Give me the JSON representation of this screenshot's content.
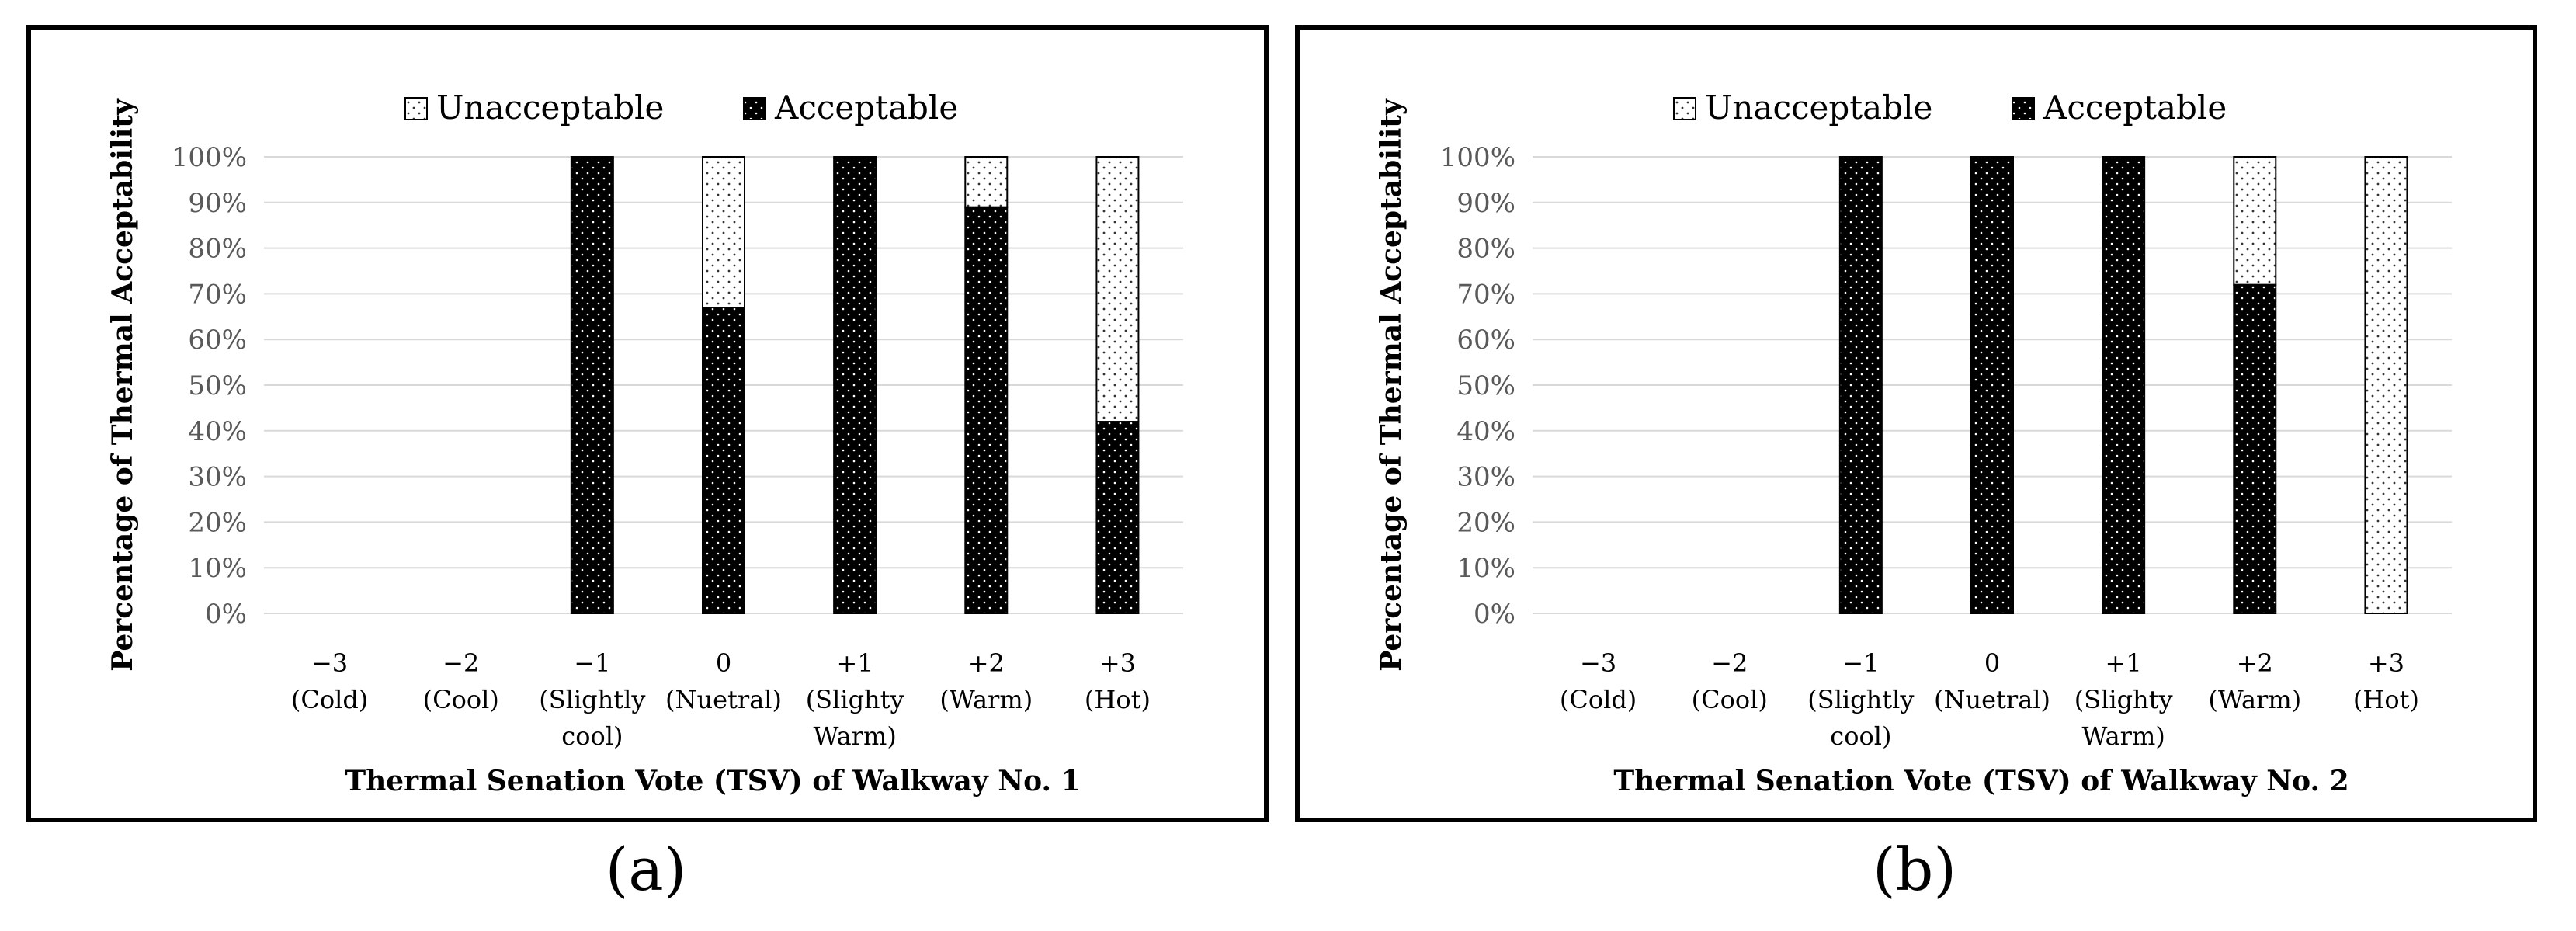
{
  "panels": [
    {
      "label": "(a)",
      "chart_data": {
        "type": "bar",
        "stacked": true,
        "categories": [
          [
            "−3",
            "(Cold)"
          ],
          [
            "−2",
            "(Cool)"
          ],
          [
            "−1",
            "(Slightly",
            "cool)"
          ],
          [
            "0",
            "(Nuetral)"
          ],
          [
            "+1",
            "(Slighty",
            "Warm)"
          ],
          [
            "+2",
            "(Warm)"
          ],
          [
            "+3",
            "(Hot)"
          ]
        ],
        "series": [
          {
            "name": "Acceptable",
            "values": [
              0,
              0,
              100,
              67,
              100,
              89,
              42
            ]
          },
          {
            "name": "Unacceptable",
            "values": [
              0,
              0,
              0,
              33,
              0,
              11,
              58
            ]
          }
        ],
        "ylabel": "Percentage of Thermal Acceptability",
        "xlabel": "Thermal Senation Vote (TSV) of Walkway No. 1",
        "yticks": [
          "0%",
          "10%",
          "20%",
          "30%",
          "40%",
          "50%",
          "60%",
          "70%",
          "80%",
          "90%",
          "100%"
        ],
        "ylim": [
          0,
          100
        ],
        "grid": true,
        "legend": [
          "Unacceptable",
          "Acceptable"
        ],
        "legend_position": "top"
      }
    },
    {
      "label": "(b)",
      "chart_data": {
        "type": "bar",
        "stacked": true,
        "categories": [
          [
            "−3",
            "(Cold)"
          ],
          [
            "−2",
            "(Cool)"
          ],
          [
            "−1",
            "(Slightly",
            "cool)"
          ],
          [
            "0",
            "(Nuetral)"
          ],
          [
            "+1",
            "(Slighty",
            "Warm)"
          ],
          [
            "+2",
            "(Warm)"
          ],
          [
            "+3",
            "(Hot)"
          ]
        ],
        "series": [
          {
            "name": "Acceptable",
            "values": [
              0,
              0,
              100,
              100,
              100,
              72,
              0
            ]
          },
          {
            "name": "Unacceptable",
            "values": [
              0,
              0,
              0,
              0,
              0,
              28,
              100
            ]
          }
        ],
        "ylabel": "Percentage of Thermal Acceptability",
        "xlabel": "Thermal Senation Vote (TSV) of Walkway No. 2",
        "yticks": [
          "0%",
          "10%",
          "20%",
          "30%",
          "40%",
          "50%",
          "60%",
          "70%",
          "80%",
          "90%",
          "100%"
        ],
        "ylim": [
          0,
          100
        ],
        "grid": true,
        "legend": [
          "Unacceptable",
          "Acceptable"
        ],
        "legend_position": "top"
      }
    }
  ],
  "colors": {
    "acceptable": "#000000",
    "unacceptable": "#ffffff",
    "grid": "#d9d9d9"
  }
}
